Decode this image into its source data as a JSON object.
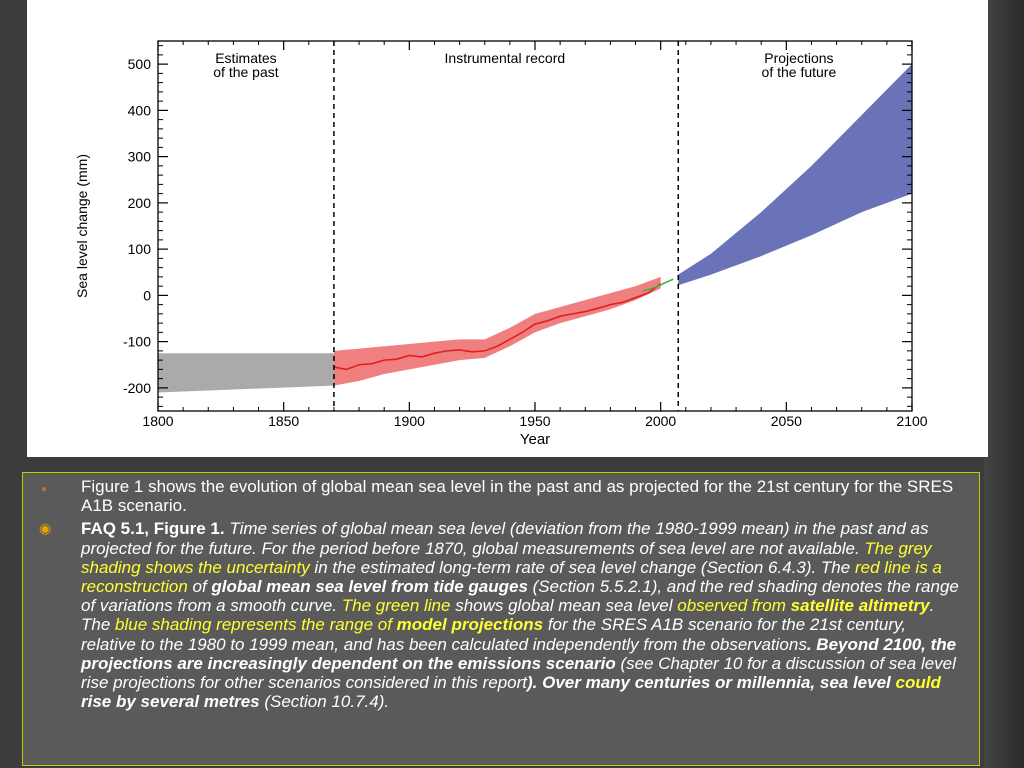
{
  "chart_data": {
    "type": "area",
    "title": "",
    "xlabel": "Year",
    "ylabel": "Sea level change (mm)",
    "xlim": [
      1800,
      2100
    ],
    "ylim": [
      -250,
      550
    ],
    "xticks": [
      1800,
      1850,
      1900,
      1950,
      2000,
      2050,
      2100
    ],
    "yticks": [
      -200,
      -100,
      0,
      100,
      200,
      300,
      400,
      500
    ],
    "grid": false,
    "period_labels": [
      {
        "text_lines": [
          "Estimates",
          "of the past"
        ],
        "x_center": 1835
      },
      {
        "text_lines": [
          "Instrumental record"
        ],
        "x_center": 1938
      },
      {
        "text_lines": [
          "Projections",
          "of the future"
        ],
        "x_center": 2055
      }
    ],
    "dividers": [
      1870,
      2007
    ],
    "series": [
      {
        "kind": "band",
        "color": "#aaaaaa",
        "x": [
          1800,
          1870
        ],
        "lower": [
          -210,
          -195
        ],
        "upper": [
          -125,
          -125
        ]
      },
      {
        "kind": "band",
        "color": "#f08080",
        "x": [
          1870,
          1880,
          1890,
          1900,
          1910,
          1920,
          1930,
          1940,
          1950,
          1960,
          1970,
          1980,
          1990,
          2000
        ],
        "lower": [
          -195,
          -185,
          -170,
          -160,
          -150,
          -140,
          -135,
          -110,
          -80,
          -60,
          -45,
          -30,
          -10,
          15
        ],
        "upper": [
          -120,
          -115,
          -110,
          -105,
          -100,
          -95,
          -95,
          -70,
          -40,
          -25,
          -10,
          5,
          20,
          40
        ]
      },
      {
        "kind": "line",
        "color": "#e02020",
        "x": [
          1870,
          1875,
          1880,
          1885,
          1890,
          1895,
          1900,
          1905,
          1910,
          1915,
          1920,
          1925,
          1930,
          1935,
          1940,
          1945,
          1950,
          1955,
          1960,
          1965,
          1970,
          1975,
          1980,
          1985,
          1990,
          1995,
          2000
        ],
        "values": [
          -155,
          -160,
          -150,
          -148,
          -140,
          -138,
          -130,
          -133,
          -125,
          -120,
          -118,
          -122,
          -120,
          -110,
          -95,
          -80,
          -62,
          -55,
          -45,
          -40,
          -35,
          -28,
          -20,
          -15,
          -5,
          5,
          25
        ]
      },
      {
        "kind": "line",
        "color": "#40b040",
        "x": [
          1993,
          1996,
          1999,
          2002,
          2005
        ],
        "values": [
          10,
          14,
          20,
          28,
          35
        ]
      },
      {
        "kind": "band",
        "color": "#6a72b8",
        "x": [
          2007,
          2020,
          2040,
          2060,
          2080,
          2100
        ],
        "lower": [
          22,
          45,
          85,
          130,
          180,
          220
        ],
        "upper": [
          45,
          90,
          180,
          280,
          390,
          500
        ]
      }
    ]
  },
  "caption": {
    "p1": "Figure 1 shows the evolution of global mean sea level in the past and as projected for the 21st century for the SRES A1B scenario.",
    "p2": {
      "s01": "FAQ 5.1, Figure 1.",
      "s02": " Time series of global mean sea level (deviation from the 1980-1999 mean) in the past and as projected for the future. For the period before 1870, global measurements of sea level are not available. ",
      "s03": "The grey shading shows the uncertainty",
      "s04": " in the estimated long-term rate of sea level change (Section 6.4.3). The ",
      "s05": "red line is a reconstruction",
      "s06": " of ",
      "s07": "global mean sea level from tide gauges",
      "s08": " (Section 5.5.2.1), and the red shading denotes the range of variations from a smooth curve. ",
      "s09": "The green line",
      "s10": " shows global mean sea level ",
      "s11": "observed from ",
      "s12": "satellite altimetry",
      "s13": ". The ",
      "s14": "blue shading represents the range of ",
      "s15": "model projections",
      "s16": " for the SRES A1B scenario for the 21st century, relative to the 1980 to 1999 mean, and has been calculated independently from the observations",
      "s17": ". Beyond 2100, the projections are increasingly dependent on the emissions scenario",
      "s18": " (see Chapter 10 for a discussion of sea level rise projections for other scenarios considered in this report",
      "s19": "). Over many centuries or millennia, sea level ",
      "s20": "could",
      "s21": " rise by several metres",
      "s22": " (Section 10.7.4)."
    }
  },
  "colors": {
    "accent_yellow": "#ffff33",
    "bullet_orange": "#e8a000",
    "box_border": "#c8c800"
  }
}
